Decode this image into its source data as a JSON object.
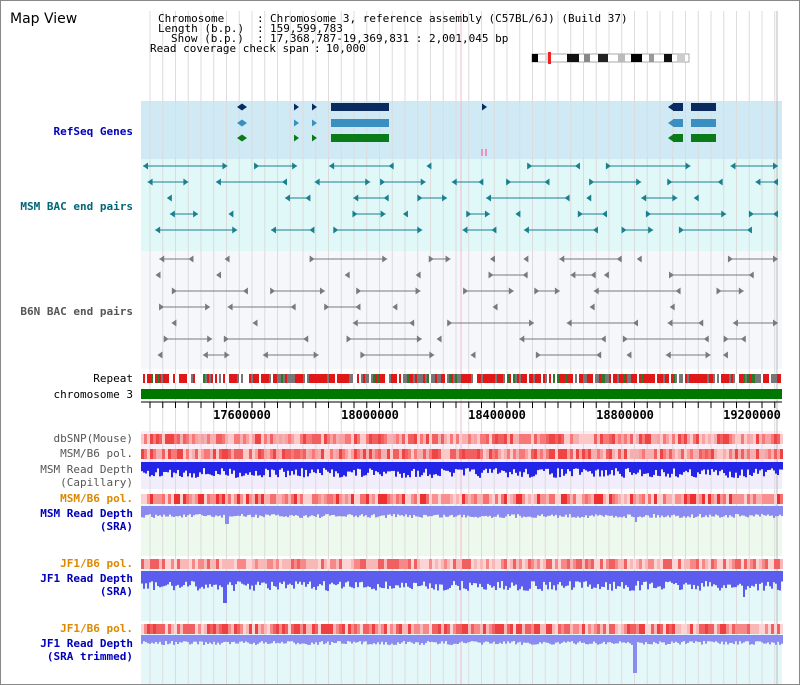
{
  "title": "Map View",
  "info": {
    "chromosome_label": "Chromosome",
    "chromosome_value": "Chromosome 3, reference assembly (C57BL/6J) (Build 37)",
    "length_label": "Length (b.p.)",
    "length_value": "159,599,783",
    "show_label": "Show (b.p.)",
    "show_value": "17,368,787-19,369,831 : 2,001,045 bp",
    "coverage_label": "Read coverage check span",
    "coverage_value": "10,000"
  },
  "tracks": {
    "refseq": "RefSeq Genes",
    "msm_bac": "MSM BAC end pairs",
    "b6n_bac": "B6N BAC end pairs",
    "repeat": "Repeat",
    "chromosome": "chromosome 3",
    "dbsnp": "dbSNP(Mouse)",
    "msm_b6_pol": "MSM/B6 pol.",
    "msm_depth_cap_1": "MSM Read Depth",
    "msm_depth_cap_2": "(Capillary)",
    "msm_b6_pol_2": "MSM/B6 pol.",
    "msm_depth_sra_1": "MSM Read Depth",
    "msm_depth_sra_2": "(SRA)",
    "jf1_pol": "JF1/B6 pol.",
    "jf1_depth_1": "JF1 Read Depth",
    "jf1_depth_2": "(SRA)",
    "jf1_pol_2": "JF1/B6 pol.",
    "jf1_trim_1": "JF1 Read Depth",
    "jf1_trim_2": "(SRA trimmed)"
  },
  "ruler": {
    "ticks": [
      "17600000",
      "18000000",
      "18400000",
      "18800000",
      "19200000"
    ]
  },
  "colors": {
    "refseq_bg": "#cfe9f5",
    "msm_bg": "#e0f8f8",
    "b6n_bg": "#f6f7fb",
    "label_blue": "#0000bb",
    "label_teal": "#006677",
    "label_gray": "#555555",
    "label_orange": "#dd8800",
    "chromosome_green": "#007700"
  }
}
